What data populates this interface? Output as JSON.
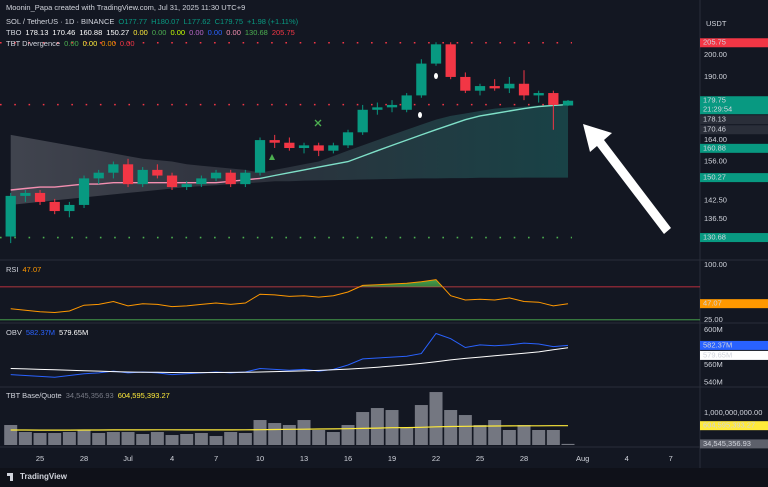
{
  "header": {
    "credit": "Moonin_Papa created with TradingView.com, Jul 31, 2025 11:30 UTC+9",
    "currency": "USDT",
    "logo": "TradingView"
  },
  "chart_data": [
    {
      "type": "candlestick",
      "log": true,
      "ylim": [
        124.6,
        219.5
      ],
      "xlim": [
        -0.73,
        47
      ],
      "legend": [
        [
          {
            "text": "SOL / TetherUS · 1D · BINANCE",
            "color": "#d1d4dc"
          },
          {
            "text": "O177.77",
            "color": "#089981"
          },
          {
            "text": "H180.07",
            "color": "#089981"
          },
          {
            "text": "L177.62",
            "color": "#089981"
          },
          {
            "text": "C179.75",
            "color": "#089981"
          },
          {
            "text": "+1.98 (+1.11%)",
            "color": "#089981"
          }
        ],
        [
          {
            "text": "TBO",
            "color": "#d1d4dc"
          },
          {
            "text": "178.13",
            "color": "#ffffff"
          },
          {
            "text": "170.46",
            "color": "#ffffff"
          },
          {
            "text": "160.88",
            "color": "#ffffff"
          },
          {
            "text": "150.27",
            "color": "#ffffff"
          },
          {
            "text": "0.00",
            "color": "#ffeb3b"
          },
          {
            "text": "0.00",
            "color": "#4caf50"
          },
          {
            "text": "0.00",
            "color": "#c6ff00"
          },
          {
            "text": "0.00",
            "color": "#ba68c8"
          },
          {
            "text": "0.00",
            "color": "#2962ff"
          },
          {
            "text": "0.00",
            "color": "#f48fb1"
          },
          {
            "text": "130.68",
            "color": "#4caf50"
          },
          {
            "text": "205.75",
            "color": "#f23645"
          }
        ],
        [
          {
            "text": "TBT Divergence",
            "color": "#d1d4dc"
          },
          {
            "text": "0.00",
            "color": "#4caf50"
          },
          {
            "text": "0.00",
            "color": "#ffeb3b"
          },
          {
            "text": "0.00",
            "color": "#ff9800"
          },
          {
            "text": "0.00",
            "color": "#f23645"
          }
        ]
      ],
      "xticks": [
        {
          "value": 2,
          "label": "25"
        },
        {
          "value": 5,
          "label": "28"
        },
        {
          "value": 8,
          "label": "Jul"
        },
        {
          "value": 11,
          "label": "4"
        },
        {
          "value": 14,
          "label": "7"
        },
        {
          "value": 17,
          "label": "10"
        },
        {
          "value": 20,
          "label": "13"
        },
        {
          "value": 23,
          "label": "16"
        },
        {
          "value": 26,
          "label": "19"
        },
        {
          "value": 29,
          "label": "22"
        },
        {
          "value": 32,
          "label": "25"
        },
        {
          "value": 35,
          "label": "28"
        },
        {
          "value": 39,
          "label": "Aug"
        },
        {
          "value": 42,
          "label": "4"
        },
        {
          "value": 45,
          "label": "7"
        }
      ],
      "yticks": [
        {
          "value": 200,
          "label": "200.00"
        },
        {
          "value": 190,
          "label": "190.00"
        },
        {
          "value": 164,
          "label": "164.00"
        },
        {
          "value": 156,
          "label": "156.00"
        },
        {
          "value": 142.5,
          "label": "142.50"
        },
        {
          "value": 136.5,
          "label": "136.50"
        }
      ],
      "up_color": "#089981",
      "down_color": "#f23645",
      "open": [
        131,
        144,
        145,
        142,
        139,
        141,
        150,
        152,
        155,
        148,
        153,
        151,
        147,
        148,
        150,
        152,
        148,
        152,
        164,
        163,
        161,
        162,
        160,
        162,
        167,
        176,
        177,
        176,
        182,
        196,
        205,
        190,
        184,
        186,
        185,
        187,
        182,
        183,
        177.77
      ],
      "high": [
        145,
        146,
        146,
        143,
        142,
        151,
        153,
        156,
        157,
        154,
        155,
        152,
        149,
        151,
        153,
        153,
        153,
        165,
        166,
        165,
        163,
        163,
        163,
        168,
        178,
        179,
        180,
        183,
        198,
        206,
        206,
        192,
        187,
        189,
        190,
        193,
        184,
        184,
        180.07
      ],
      "low": [
        129,
        142,
        141,
        138,
        137,
        140,
        148,
        150,
        147,
        147,
        150,
        146,
        146,
        147,
        149,
        147,
        147,
        151,
        161,
        160,
        159,
        158,
        159,
        161,
        166,
        174,
        175,
        175,
        181,
        195,
        189,
        183,
        182,
        184,
        183,
        180,
        179,
        168,
        177.62
      ],
      "close": [
        144,
        145,
        142,
        139,
        141,
        150,
        152,
        155,
        148,
        153,
        151,
        147,
        148,
        150,
        152,
        148,
        152,
        164,
        163,
        161,
        162,
        160,
        162,
        167,
        176,
        177,
        178,
        182,
        196,
        205,
        190,
        184,
        186,
        185,
        187,
        182,
        183,
        178,
        179.75
      ],
      "series": [
        {
          "name": "TBO fast",
          "color": "#f48fb1",
          "values": [
            146,
            146.5,
            147,
            147,
            147.5,
            148,
            148,
            148.5,
            148.5,
            148.5,
            148.5,
            148.5,
            148.5,
            148.5,
            148.5,
            149,
            149.5,
            150,
            null,
            null,
            null,
            null,
            null,
            null,
            null,
            null,
            null,
            null,
            null,
            null,
            null,
            null,
            null,
            null,
            null,
            null,
            null,
            null,
            null
          ]
        },
        {
          "name": "TBO slow",
          "color": "#7fe0c8",
          "values": [
            null,
            null,
            null,
            null,
            null,
            null,
            null,
            null,
            null,
            null,
            null,
            null,
            null,
            null,
            null,
            null,
            null,
            150,
            151,
            152,
            153,
            154,
            155,
            156,
            158,
            160,
            162,
            164,
            166,
            168,
            170,
            172,
            173.5,
            174.5,
            175.5,
            176.5,
            177.3,
            177.8,
            178.13
          ]
        }
      ],
      "cloud_upper": [
        166,
        165,
        164,
        163,
        162,
        161,
        160,
        159,
        158,
        157,
        156.5,
        156,
        155,
        154.5,
        154,
        153.5,
        153,
        152,
        153,
        154,
        155,
        156,
        158,
        160,
        162,
        164,
        166,
        168,
        170,
        172,
        173.5,
        174.5,
        175.5,
        176.5,
        177,
        177.3,
        177.8,
        178,
        178.13
      ],
      "cloud_lower": [
        141,
        141.5,
        142,
        142.5,
        143,
        143.5,
        144,
        144.5,
        145,
        145.5,
        146,
        146.5,
        147,
        147.3,
        147.6,
        148,
        148.3,
        148.6,
        149,
        149,
        149.2,
        149.3,
        149.4,
        149.5,
        149.6,
        149.7,
        149.8,
        149.9,
        150,
        150,
        150.1,
        150.1,
        150.2,
        150.2,
        150.2,
        150.25,
        150.25,
        150.27,
        150.27
      ],
      "levels": [
        {
          "value": 205.75,
          "color": "#f23645"
        },
        {
          "value": 178.13,
          "color": "#f23645"
        },
        {
          "value": 130.68,
          "color": "#4caf50"
        }
      ],
      "price_labels": [
        {
          "value": 205.75,
          "label": "205.75",
          "bg": "#f23645",
          "fg": "#ffffff"
        },
        {
          "value": 179.75,
          "label": "179.75",
          "bg": "#089981",
          "fg": "#ffffff"
        },
        {
          "value": 178.13,
          "label": "178.13",
          "bg": "#2a2e39",
          "fg": "#ffffff"
        },
        {
          "value": 170.46,
          "label": "170.46",
          "bg": "#2a2e39",
          "fg": "#ffffff"
        },
        {
          "value": 160.88,
          "label": "160.88",
          "bg": "#089981",
          "fg": "#ffffff"
        },
        {
          "value": 150.27,
          "label": "150.27",
          "bg": "#089981",
          "fg": "#ffffff"
        },
        {
          "value": 130.68,
          "label": "130.68",
          "bg": "#089981",
          "fg": "#ffffff"
        }
      ],
      "countdown": "21:29:54"
    },
    {
      "type": "line",
      "ylim": [
        22,
        104
      ],
      "legend": [
        {
          "text": "RSI",
          "color": "#d1d4dc"
        },
        {
          "text": "47.07",
          "color": "#ff9800"
        }
      ],
      "yticks": [
        {
          "value": 100,
          "label": "100.00"
        },
        {
          "value": 25,
          "label": "25.00"
        }
      ],
      "levels": [
        {
          "value": 70,
          "color": "#f23645"
        },
        {
          "value": 25,
          "color": "#4caf50"
        }
      ],
      "series": [
        {
          "name": "RSI",
          "color": "#ff9800",
          "values": [
            40,
            38,
            36,
            35,
            37,
            45,
            46,
            50,
            44,
            47,
            46,
            43,
            44,
            46,
            48,
            46,
            48,
            60,
            59,
            57,
            58,
            56,
            58,
            63,
            72,
            73,
            74,
            75,
            77,
            80,
            58,
            52,
            53,
            52,
            55,
            50,
            49,
            44,
            47.07
          ]
        }
      ],
      "price_labels": [
        {
          "value": 47.07,
          "label": "47.07",
          "bg": "#ff9800",
          "fg": "#131722"
        }
      ]
    },
    {
      "type": "line",
      "ylim": [
        533.7,
        605.7
      ],
      "legend": [
        {
          "text": "OBV",
          "color": "#d1d4dc"
        },
        {
          "text": "582.37M",
          "color": "#2962ff"
        },
        {
          "text": "579.65M",
          "color": "#ffffff"
        }
      ],
      "yticks": [
        {
          "value": 600,
          "label": "600M"
        },
        {
          "value": 560,
          "label": "560M"
        },
        {
          "value": 540,
          "label": "540M"
        }
      ],
      "series": [
        {
          "name": "OBV",
          "color": "#2962ff",
          "values": [
            549,
            548,
            547,
            546,
            548,
            550,
            551,
            553,
            551,
            552,
            551,
            549,
            550,
            551,
            552,
            551,
            552,
            556,
            555,
            554,
            555,
            553,
            555,
            560,
            567,
            568,
            569,
            570,
            573,
            596,
            590,
            580,
            583,
            582,
            583,
            585,
            584,
            581,
            582.37
          ]
        },
        {
          "name": "OBV MA",
          "color": "#ffffff",
          "values": [
            556,
            555.5,
            555,
            554.5,
            554,
            553.5,
            553,
            552.5,
            552,
            551.8,
            551.6,
            551.4,
            551.3,
            551.3,
            551.4,
            551.5,
            551.7,
            552,
            552.4,
            552.8,
            553.3,
            553.8,
            554.5,
            555.3,
            556.3,
            557.5,
            558.8,
            560.2,
            561.8,
            563.8,
            565.8,
            567.5,
            569,
            570.5,
            572,
            573.5,
            575,
            577.5,
            579.65
          ]
        }
      ],
      "price_labels": [
        {
          "value": 582.37,
          "label": "582.37M",
          "bg": "#2962ff",
          "fg": "#ffffff"
        },
        {
          "value": 579.65,
          "label": "579.65M",
          "bg": "#ffffff",
          "fg": "#131722"
        }
      ]
    },
    {
      "type": "bar",
      "ylim": [
        0,
        1720000000
      ],
      "legend": [
        {
          "text": "TBT Base/Quote",
          "color": "#d1d4dc"
        },
        {
          "text": "34,545,356.93",
          "color": "#787b86"
        },
        {
          "text": "604,595,393.27",
          "color": "#ffeb3b"
        }
      ],
      "yticks": [
        {
          "value": 1000000000,
          "label": "1,000,000,000.00"
        }
      ],
      "color": "#9598a1",
      "values": [
        625000000,
        406000000,
        375000000,
        375000000,
        406000000,
        469000000,
        375000000,
        406000000,
        406000000,
        344000000,
        406000000,
        312000000,
        344000000,
        375000000,
        281000000,
        406000000,
        375000000,
        781000000,
        687000000,
        625000000,
        781000000,
        469000000,
        406000000,
        625000000,
        1031000000,
        1156000000,
        1094000000,
        531000000,
        1250000000,
        1656000000,
        1094000000,
        937000000,
        625000000,
        781000000,
        469000000,
        625000000,
        469000000,
        469000000,
        34545356.93
      ],
      "series": [
        {
          "name": "MA",
          "color": "#ffeb3b",
          "values": [
            470000000,
            468000000,
            466000000,
            465000000,
            466000000,
            468000000,
            470000000,
            471000000,
            472000000,
            473000000,
            474000000,
            474000000,
            473000000,
            472000000,
            472000000,
            473000000,
            475000000,
            480000000,
            485000000,
            490000000,
            495000000,
            500000000,
            505000000,
            510000000,
            520000000,
            530000000,
            540000000,
            545000000,
            555000000,
            570000000,
            580000000,
            585000000,
            590000000,
            595000000,
            598000000,
            600000000,
            602000000,
            603000000,
            604595393.27
          ]
        }
      ],
      "price_labels": [
        {
          "value": 604595393.27,
          "label": "604,595,393.27",
          "bg": "#ffeb3b",
          "fg": "#131722"
        },
        {
          "value": 34545356.93,
          "label": "34,545,356.93",
          "bg": "#5d606b",
          "fg": "#ffffff"
        }
      ]
    }
  ]
}
